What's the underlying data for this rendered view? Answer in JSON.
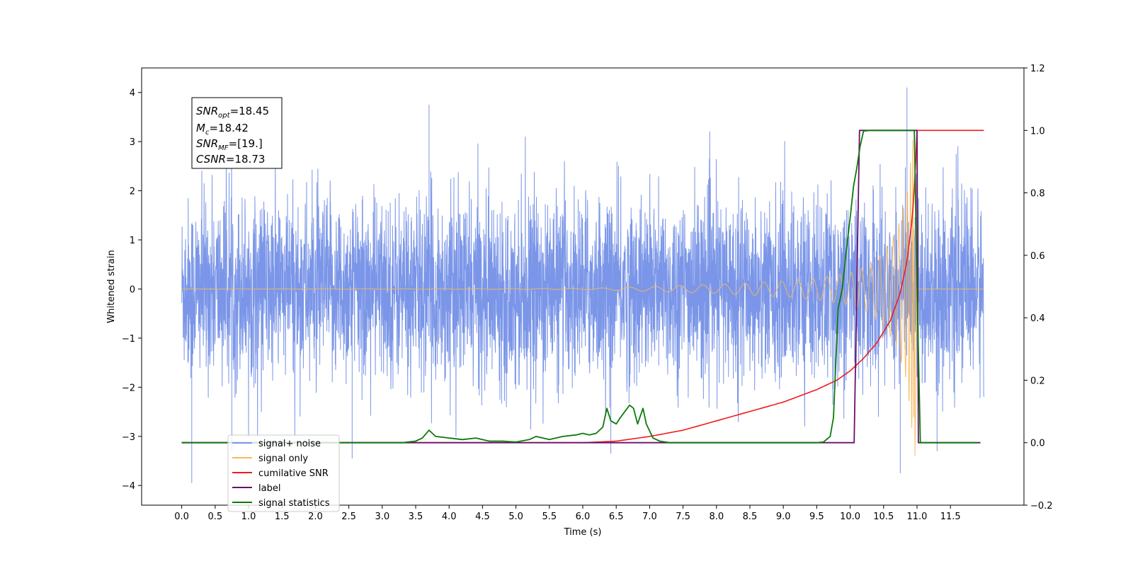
{
  "chart_data": {
    "type": "line",
    "xlabel": "Time (s)",
    "ylabel": "Whitened strain",
    "xlim": [
      -0.6,
      12.6
    ],
    "ylim": [
      -4.4,
      4.5
    ],
    "y2lim": [
      -0.2,
      1.2
    ],
    "x_ticks": [
      "0.0",
      "0.5",
      "1.0",
      "1.5",
      "2.0",
      "2.5",
      "3.0",
      "3.5",
      "4.0",
      "4.5",
      "5.0",
      "5.5",
      "6.0",
      "6.5",
      "7.0",
      "7.5",
      "8.0",
      "8.5",
      "9.0",
      "9.5",
      "10.0",
      "10.5",
      "11.0",
      "11.5"
    ],
    "y_ticks": [
      "−4",
      "−3",
      "−2",
      "−1",
      "0",
      "1",
      "2",
      "3",
      "4"
    ],
    "y2_ticks": [
      "−0.2",
      "0.0",
      "0.2",
      "0.4",
      "0.6",
      "0.8",
      "1.0",
      "1.2"
    ],
    "grid": false,
    "legend_position": "lower-left",
    "stats_box": {
      "snr_opt": {
        "label": "SNR",
        "sub": "opt",
        "value": "=18.45"
      },
      "mc": {
        "label": "M",
        "sub": "c",
        "value": "=18.42"
      },
      "snr_mf": {
        "label": "SNR",
        "sub": "MF",
        "value": "=[19.]"
      },
      "csnr": {
        "label": "CSNR",
        "value": "=18.73"
      }
    },
    "series": [
      {
        "name": "signal+ noise",
        "axis": "left",
        "color": "#7b96e8",
        "kind": "noise",
        "x_range": [
          0.0,
          12.0
        ],
        "envelope": 2.0,
        "extreme_spikes": [
          [
            0.15,
            -3.95
          ],
          [
            0.75,
            -3.3
          ],
          [
            3.7,
            3.75
          ],
          [
            6.42,
            -3.35
          ],
          [
            10.75,
            -3.75
          ],
          [
            10.85,
            4.1
          ],
          [
            11.3,
            -3.3
          ],
          [
            2.55,
            -3.45
          ]
        ]
      },
      {
        "name": "signal only",
        "axis": "left",
        "color": "#f6b85a",
        "kind": "chirp",
        "x": [
          0.0,
          6.0,
          7.0,
          8.0,
          9.0,
          9.5,
          10.0,
          10.3,
          10.5,
          10.7,
          10.85,
          10.95,
          10.97,
          11.0,
          12.0
        ],
        "amplitude": [
          0.0,
          0.01,
          0.05,
          0.09,
          0.16,
          0.22,
          0.33,
          0.5,
          0.75,
          1.2,
          1.9,
          3.2,
          -3.4,
          0.0,
          0.0
        ]
      },
      {
        "name": "cumilative SNR",
        "axis": "right",
        "color": "#ee1c1c",
        "x": [
          0.0,
          6.0,
          6.5,
          7.0,
          7.5,
          8.0,
          8.5,
          9.0,
          9.5,
          9.8,
          10.0,
          10.2,
          10.4,
          10.6,
          10.75,
          10.85,
          10.93,
          10.97,
          11.0,
          12.0
        ],
        "values": [
          0.0,
          0.0,
          0.005,
          0.02,
          0.04,
          0.07,
          0.1,
          0.13,
          0.17,
          0.2,
          0.23,
          0.27,
          0.32,
          0.39,
          0.48,
          0.58,
          0.72,
          0.85,
          1.0,
          1.0
        ]
      },
      {
        "name": "label",
        "axis": "right",
        "color": "#6b0f6b",
        "x": [
          0.0,
          10.06,
          10.14,
          10.95,
          11.0,
          11.02,
          11.95
        ],
        "values": [
          0.0,
          0.0,
          1.0,
          1.0,
          1.0,
          0.0,
          0.0
        ]
      },
      {
        "name": "signal statistics",
        "axis": "right",
        "color": "#0b7a0b",
        "x": [
          0.0,
          3.3,
          3.5,
          3.6,
          3.7,
          3.8,
          4.0,
          4.2,
          4.4,
          4.6,
          4.8,
          5.0,
          5.2,
          5.3,
          5.5,
          5.7,
          5.9,
          6.0,
          6.1,
          6.2,
          6.3,
          6.36,
          6.42,
          6.5,
          6.56,
          6.63,
          6.7,
          6.76,
          6.82,
          6.9,
          6.95,
          7.05,
          7.15,
          7.3,
          9.5,
          9.6,
          9.7,
          9.75,
          9.82,
          9.88,
          9.95,
          10.0,
          10.05,
          10.1,
          10.15,
          10.2,
          10.3,
          10.5,
          10.96,
          11.0,
          11.05,
          11.9
        ],
        "values": [
          0.0,
          0.0,
          0.005,
          0.015,
          0.04,
          0.02,
          0.015,
          0.01,
          0.015,
          0.005,
          0.005,
          0.002,
          0.01,
          0.02,
          0.01,
          0.02,
          0.025,
          0.03,
          0.025,
          0.03,
          0.05,
          0.11,
          0.07,
          0.06,
          0.08,
          0.1,
          0.12,
          0.11,
          0.06,
          0.11,
          0.06,
          0.015,
          0.005,
          0.0,
          0.0,
          0.002,
          0.02,
          0.08,
          0.43,
          0.49,
          0.63,
          0.72,
          0.82,
          0.88,
          0.95,
          0.998,
          1.0,
          1.0,
          1.0,
          0.5,
          0.0,
          0.0
        ]
      }
    ]
  }
}
